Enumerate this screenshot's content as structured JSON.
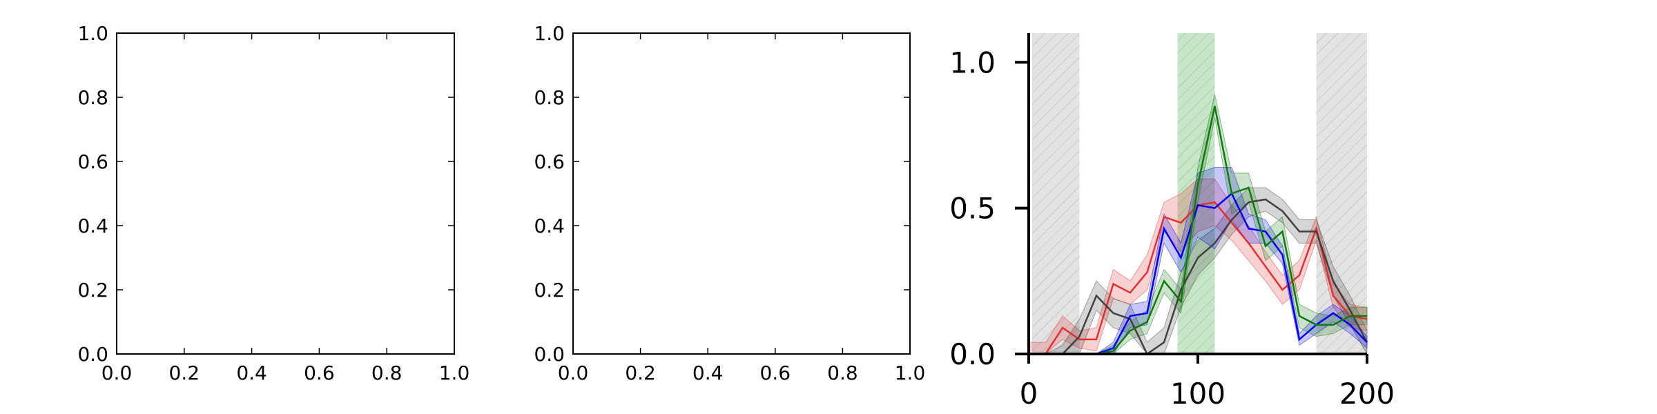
{
  "chart_data": [
    {
      "type": "line",
      "title": "",
      "xlabel": "",
      "ylabel": "",
      "xlim": [
        0,
        1
      ],
      "ylim": [
        0,
        1
      ],
      "xticks": [
        "0.0",
        "0.2",
        "0.4",
        "0.6",
        "0.8",
        "1.0"
      ],
      "yticks": [
        "0.0",
        "0.2",
        "0.4",
        "0.6",
        "0.8",
        "1.0"
      ],
      "series": []
    },
    {
      "type": "line",
      "title": "",
      "xlabel": "",
      "ylabel": "",
      "xlim": [
        0,
        1
      ],
      "ylim": [
        0,
        1
      ],
      "xticks": [
        "0.0",
        "0.2",
        "0.4",
        "0.6",
        "0.8",
        "1.0"
      ],
      "yticks": [
        "0.0",
        "0.2",
        "0.4",
        "0.6",
        "0.8",
        "1.0"
      ],
      "series": []
    },
    {
      "type": "line",
      "title": "",
      "xlabel": "",
      "ylabel": "",
      "xlim": [
        0,
        200
      ],
      "ylim": [
        0,
        1.1
      ],
      "xticks": [
        "0",
        "100",
        "200"
      ],
      "yticks": [
        "0.0",
        "0.5",
        "1.0"
      ],
      "grid": false,
      "shaded_regions": [
        {
          "x0": 2,
          "x1": 30,
          "color": "#e3e3e3",
          "hatch": true
        },
        {
          "x0": 88,
          "x1": 110,
          "color": "#c7e5c7",
          "hatch": true
        },
        {
          "x0": 170,
          "x1": 200,
          "color": "#e3e3e3",
          "hatch": true
        }
      ],
      "x": [
        0,
        10,
        20,
        30,
        40,
        50,
        60,
        70,
        80,
        90,
        100,
        110,
        120,
        130,
        140,
        150,
        160,
        170,
        180,
        190,
        200
      ],
      "series": [
        {
          "color": "#e03030",
          "values": [
            0.0,
            0.0,
            0.09,
            0.05,
            0.05,
            0.24,
            0.21,
            0.28,
            0.47,
            0.45,
            0.51,
            0.52,
            0.45,
            0.38,
            0.3,
            0.22,
            0.27,
            0.43,
            0.2,
            0.13,
            0.12
          ],
          "band": [
            0.04,
            0.04,
            0.04,
            0.03,
            0.04,
            0.05,
            0.04,
            0.06,
            0.05,
            0.1,
            0.09,
            0.08,
            0.06,
            0.06,
            0.05,
            0.05,
            0.05,
            0.04,
            0.04,
            0.04,
            0.04
          ]
        },
        {
          "color": "#404040",
          "values": [
            0.0,
            0.0,
            0.0,
            0.06,
            0.2,
            0.14,
            0.12,
            0.0,
            0.04,
            0.22,
            0.33,
            0.38,
            0.46,
            0.52,
            0.53,
            0.49,
            0.42,
            0.42,
            0.25,
            0.15,
            0.04
          ],
          "band": [
            0.0,
            0.0,
            0.03,
            0.06,
            0.05,
            0.05,
            0.05,
            0.04,
            0.05,
            0.06,
            0.06,
            0.05,
            0.05,
            0.05,
            0.04,
            0.04,
            0.04,
            0.04,
            0.05,
            0.05,
            0.04
          ]
        },
        {
          "color": "#0000ee",
          "values": [
            0.0,
            0.0,
            0.0,
            0.0,
            0.0,
            0.02,
            0.13,
            0.14,
            0.43,
            0.33,
            0.51,
            0.5,
            0.55,
            0.43,
            0.42,
            0.34,
            0.05,
            0.1,
            0.14,
            0.1,
            0.04
          ],
          "band": [
            0.0,
            0.0,
            0.0,
            0.0,
            0.0,
            0.02,
            0.04,
            0.04,
            0.05,
            0.05,
            0.11,
            0.14,
            0.09,
            0.05,
            0.04,
            0.03,
            0.02,
            0.03,
            0.03,
            0.03,
            0.02
          ]
        },
        {
          "color": "#107a10",
          "values": [
            0.0,
            0.0,
            0.0,
            0.0,
            0.0,
            0.01,
            0.08,
            0.11,
            0.25,
            0.18,
            0.58,
            0.85,
            0.55,
            0.57,
            0.37,
            0.42,
            0.13,
            0.1,
            0.1,
            0.13,
            0.13
          ],
          "band": [
            0.0,
            0.0,
            0.0,
            0.0,
            0.0,
            0.02,
            0.03,
            0.04,
            0.04,
            0.04,
            0.06,
            0.04,
            0.07,
            0.05,
            0.05,
            0.05,
            0.04,
            0.04,
            0.03,
            0.03,
            0.03
          ]
        }
      ]
    }
  ]
}
